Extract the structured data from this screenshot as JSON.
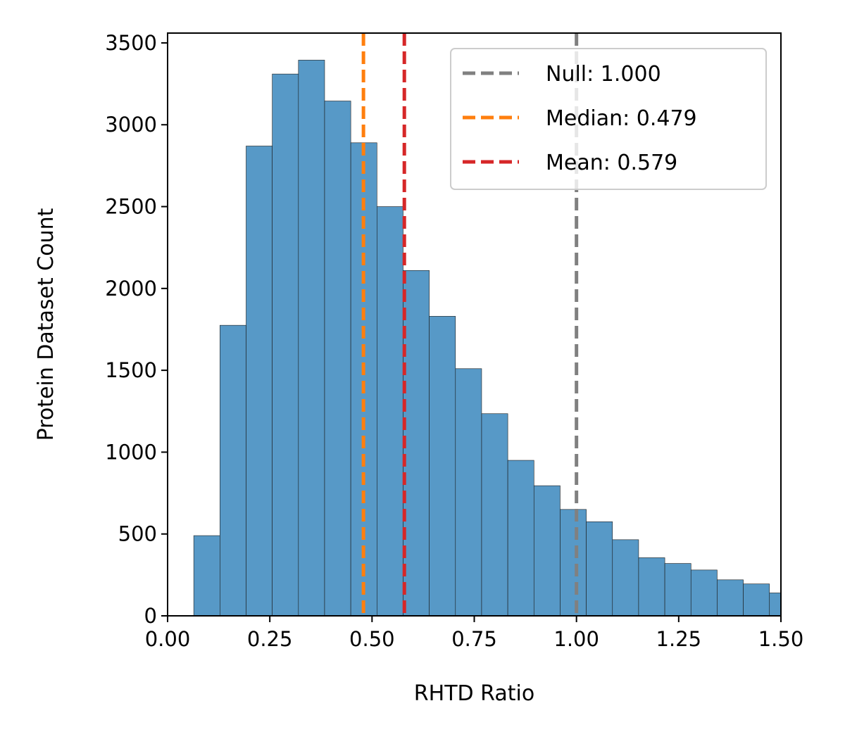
{
  "chart_data": {
    "type": "bar",
    "subtype": "histogram",
    "title": "",
    "xlabel": "RHTD Ratio",
    "ylabel": "Protein Dataset Count",
    "xlim": [
      0.0,
      1.5
    ],
    "ylim": [
      0,
      3560
    ],
    "xticks": [
      0.0,
      0.25,
      0.5,
      0.75,
      1.0,
      1.25,
      1.5
    ],
    "xtick_labels": [
      "0.00",
      "0.25",
      "0.50",
      "0.75",
      "1.00",
      "1.25",
      "1.50"
    ],
    "yticks": [
      0,
      500,
      1000,
      1500,
      2000,
      2500,
      3000,
      3500
    ],
    "ytick_labels": [
      "0",
      "500",
      "1000",
      "1500",
      "2000",
      "2500",
      "3000",
      "3500"
    ],
    "grid": false,
    "bar_color": "#5799c7",
    "bins": [
      {
        "x0": 0.064,
        "x1": 0.128,
        "count": 490
      },
      {
        "x0": 0.128,
        "x1": 0.192,
        "count": 1775
      },
      {
        "x0": 0.192,
        "x1": 0.256,
        "count": 2870
      },
      {
        "x0": 0.256,
        "x1": 0.32,
        "count": 3310
      },
      {
        "x0": 0.32,
        "x1": 0.384,
        "count": 3395
      },
      {
        "x0": 0.384,
        "x1": 0.448,
        "count": 3145
      },
      {
        "x0": 0.448,
        "x1": 0.512,
        "count": 2890
      },
      {
        "x0": 0.512,
        "x1": 0.576,
        "count": 2500
      },
      {
        "x0": 0.576,
        "x1": 0.64,
        "count": 2110
      },
      {
        "x0": 0.64,
        "x1": 0.704,
        "count": 1830
      },
      {
        "x0": 0.704,
        "x1": 0.768,
        "count": 1510
      },
      {
        "x0": 0.768,
        "x1": 0.832,
        "count": 1235
      },
      {
        "x0": 0.832,
        "x1": 0.896,
        "count": 950
      },
      {
        "x0": 0.896,
        "x1": 0.96,
        "count": 795
      },
      {
        "x0": 0.96,
        "x1": 1.024,
        "count": 650
      },
      {
        "x0": 1.024,
        "x1": 1.088,
        "count": 575
      },
      {
        "x0": 1.088,
        "x1": 1.152,
        "count": 465
      },
      {
        "x0": 1.152,
        "x1": 1.216,
        "count": 355
      },
      {
        "x0": 1.216,
        "x1": 1.28,
        "count": 320
      },
      {
        "x0": 1.28,
        "x1": 1.344,
        "count": 280
      },
      {
        "x0": 1.344,
        "x1": 1.408,
        "count": 220
      },
      {
        "x0": 1.408,
        "x1": 1.472,
        "count": 195
      },
      {
        "x0": 1.472,
        "x1": 1.536,
        "count": 140
      }
    ],
    "reference_lines": [
      {
        "name": "Null",
        "value": 1.0,
        "label": "Null: 1.000",
        "color": "#808080"
      },
      {
        "name": "Median",
        "value": 0.479,
        "label": "Median: 0.479",
        "color": "#ff7f0e"
      },
      {
        "name": "Mean",
        "value": 0.579,
        "label": "Mean: 0.579",
        "color": "#d62728"
      }
    ],
    "legend": {
      "placement": "top-right"
    }
  }
}
